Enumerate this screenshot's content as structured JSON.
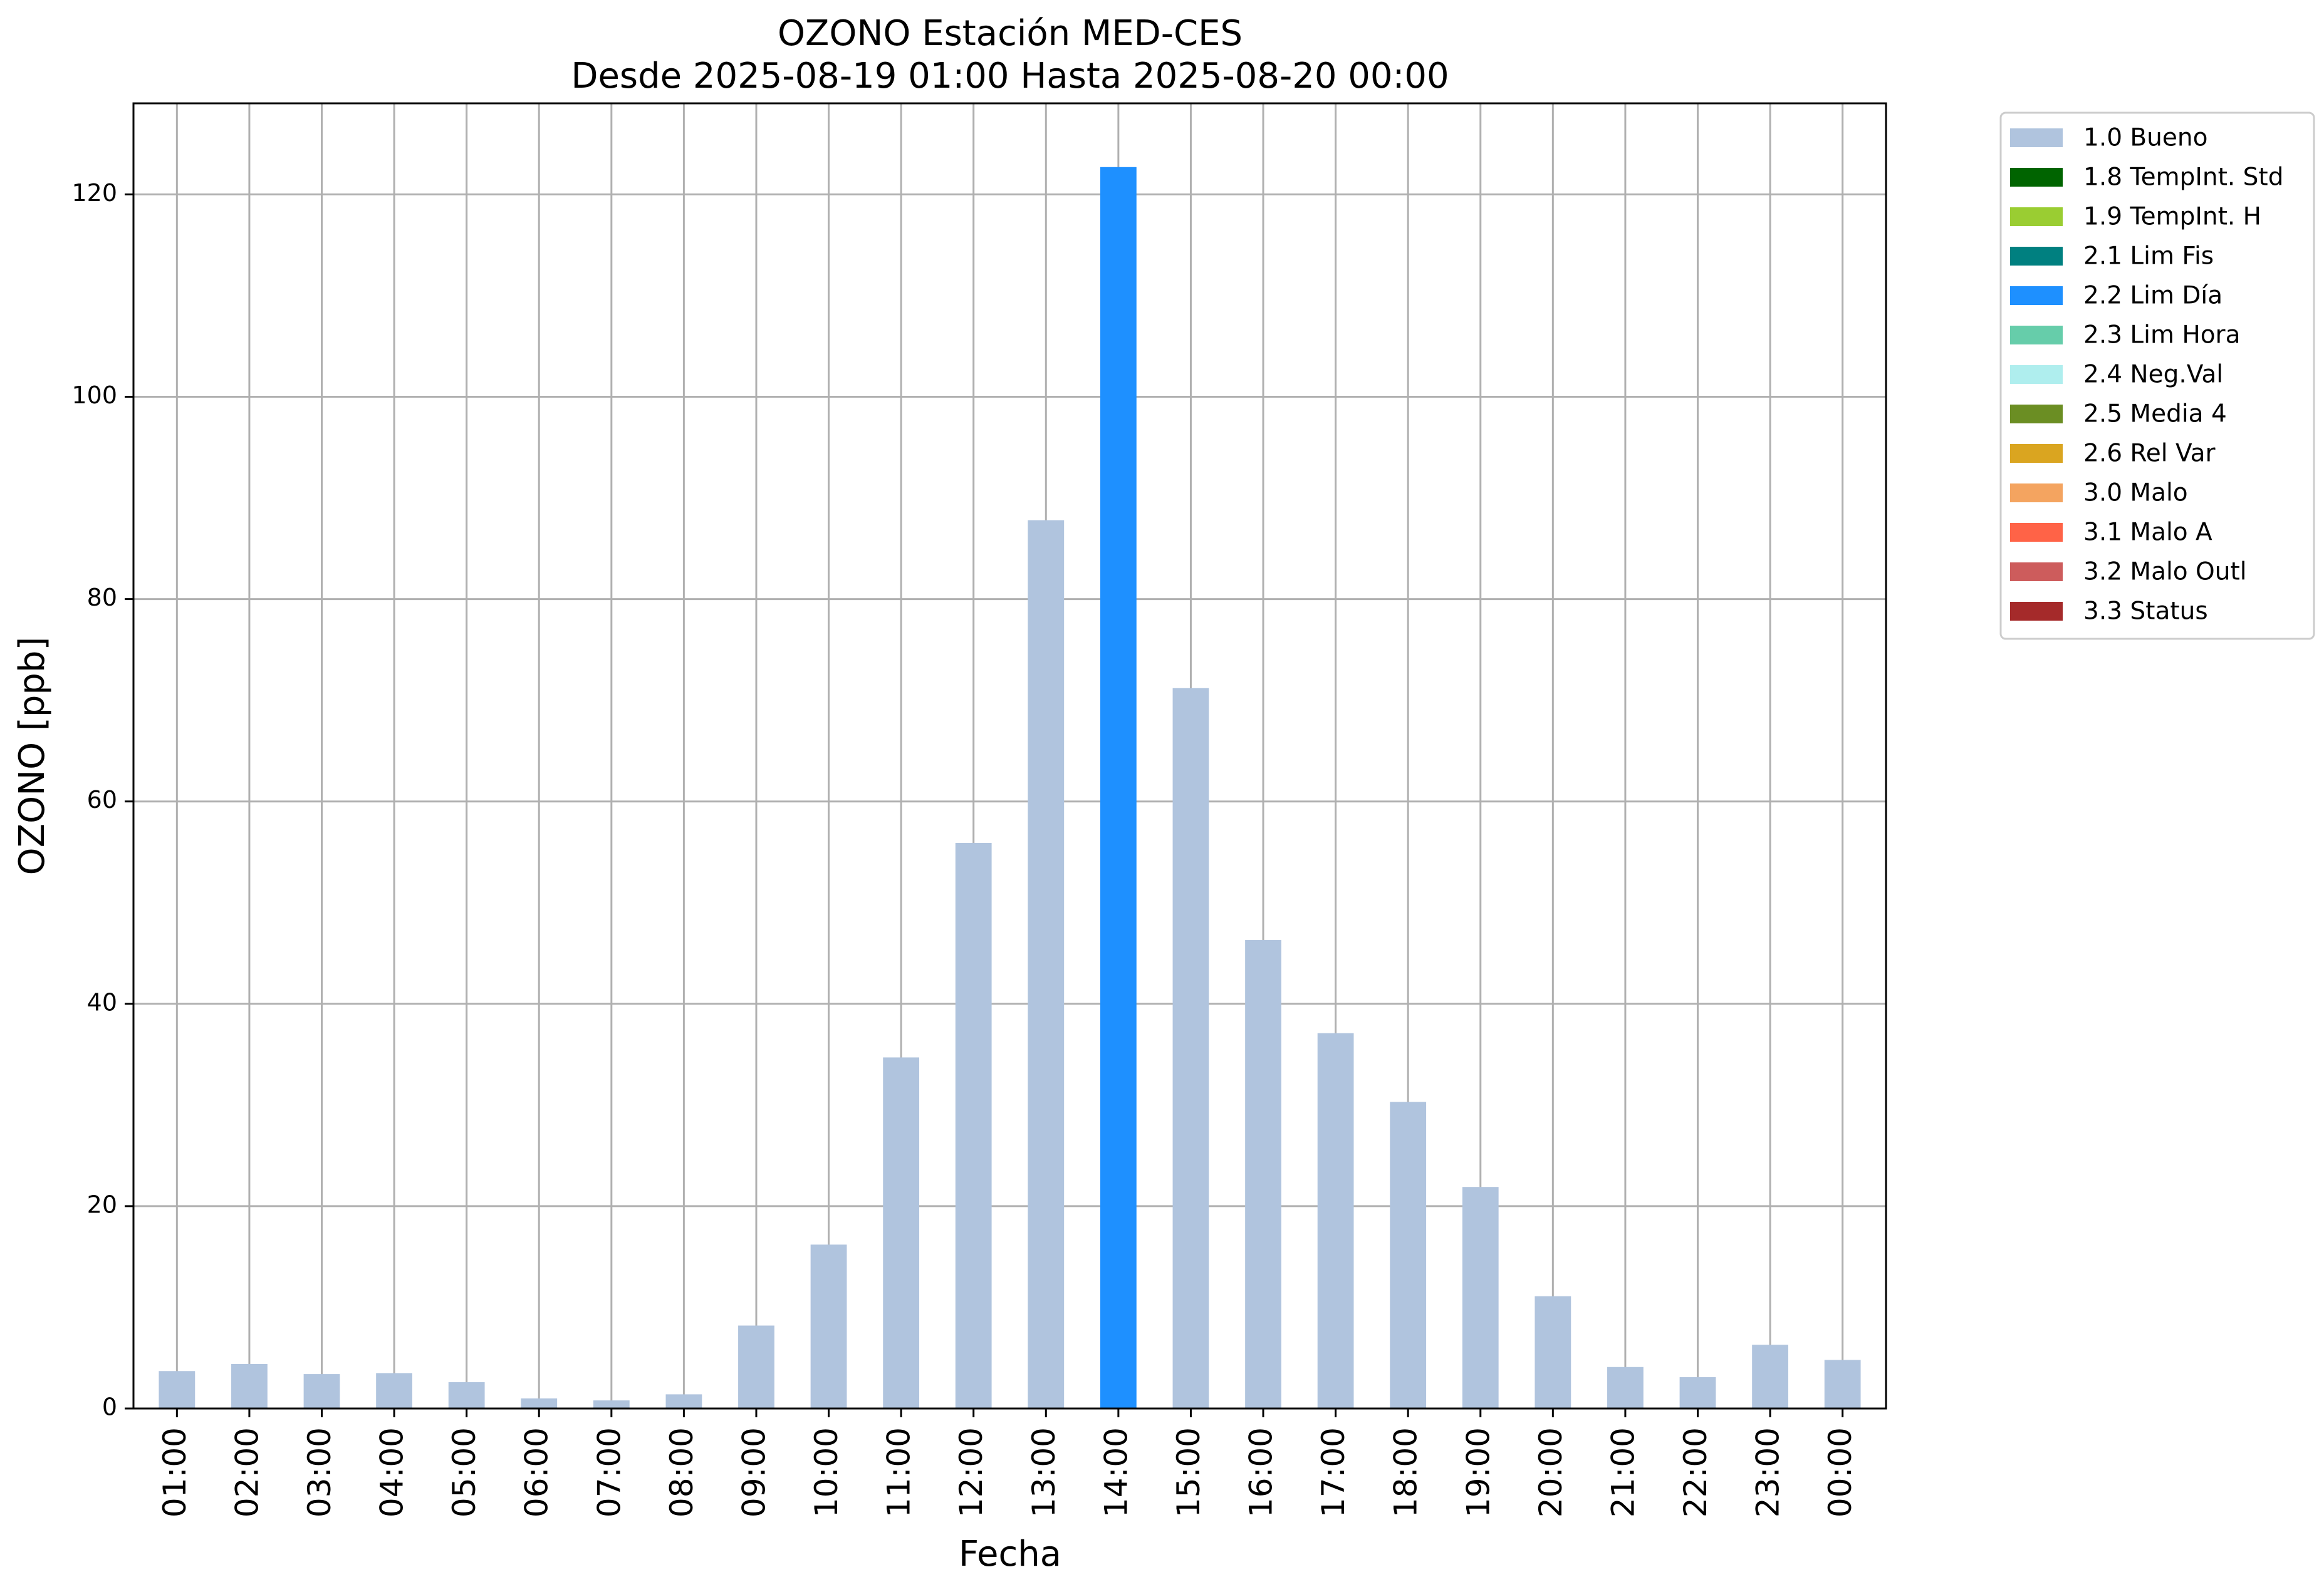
{
  "chart_data": {
    "type": "bar",
    "title_line1": "OZONO Estación MED-CES",
    "title_line2": "Desde 2025-08-19 01:00 Hasta 2025-08-20 00:00",
    "xlabel": "Fecha",
    "ylabel": "OZONO [ppb]",
    "ylim": [
      0,
      129
    ],
    "yticks": [
      0,
      20,
      40,
      60,
      80,
      100,
      120
    ],
    "grid": true,
    "legend_position": "outside-right-top",
    "categories": [
      "01:00",
      "02:00",
      "03:00",
      "04:00",
      "05:00",
      "06:00",
      "07:00",
      "08:00",
      "09:00",
      "10:00",
      "11:00",
      "12:00",
      "13:00",
      "14:00",
      "15:00",
      "16:00",
      "17:00",
      "18:00",
      "19:00",
      "20:00",
      "21:00",
      "22:00",
      "23:00",
      "00:00"
    ],
    "values": [
      3.7,
      4.4,
      3.4,
      3.5,
      2.6,
      1.0,
      0.8,
      1.4,
      8.2,
      16.2,
      34.7,
      55.9,
      87.8,
      122.7,
      71.2,
      46.3,
      37.1,
      30.3,
      21.9,
      11.1,
      4.1,
      3.1,
      6.3,
      4.8
    ],
    "flags": [
      "1.0 Bueno",
      "1.0 Bueno",
      "1.0 Bueno",
      "1.0 Bueno",
      "1.0 Bueno",
      "1.0 Bueno",
      "1.0 Bueno",
      "1.0 Bueno",
      "1.0 Bueno",
      "1.0 Bueno",
      "1.0 Bueno",
      "1.0 Bueno",
      "1.0 Bueno",
      "2.2 Lim Día",
      "1.0 Bueno",
      "1.0 Bueno",
      "1.0 Bueno",
      "1.0 Bueno",
      "1.0 Bueno",
      "1.0 Bueno",
      "1.0 Bueno",
      "1.0 Bueno",
      "1.0 Bueno",
      "1.0 Bueno"
    ],
    "legend": [
      {
        "label": "1.0 Bueno",
        "color": "#b0c4de"
      },
      {
        "label": "1.8 TempInt. Std",
        "color": "#006400"
      },
      {
        "label": "1.9 TempInt. H",
        "color": "#9acd32"
      },
      {
        "label": "2.1 Lim Fis",
        "color": "#008080"
      },
      {
        "label": "2.2 Lim Día",
        "color": "#1e90ff"
      },
      {
        "label": "2.3 Lim Hora",
        "color": "#66cdaa"
      },
      {
        "label": "2.4 Neg.Val",
        "color": "#afeeee"
      },
      {
        "label": "2.5 Media 4",
        "color": "#6b8e23"
      },
      {
        "label": "2.6 Rel Var",
        "color": "#daa520"
      },
      {
        "label": "3.0 Malo",
        "color": "#f4a460"
      },
      {
        "label": "3.1 Malo A",
        "color": "#ff6347"
      },
      {
        "label": "3.2 Malo Outl",
        "color": "#cd5c5c"
      },
      {
        "label": "3.3 Status",
        "color": "#a52a2a"
      }
    ]
  }
}
